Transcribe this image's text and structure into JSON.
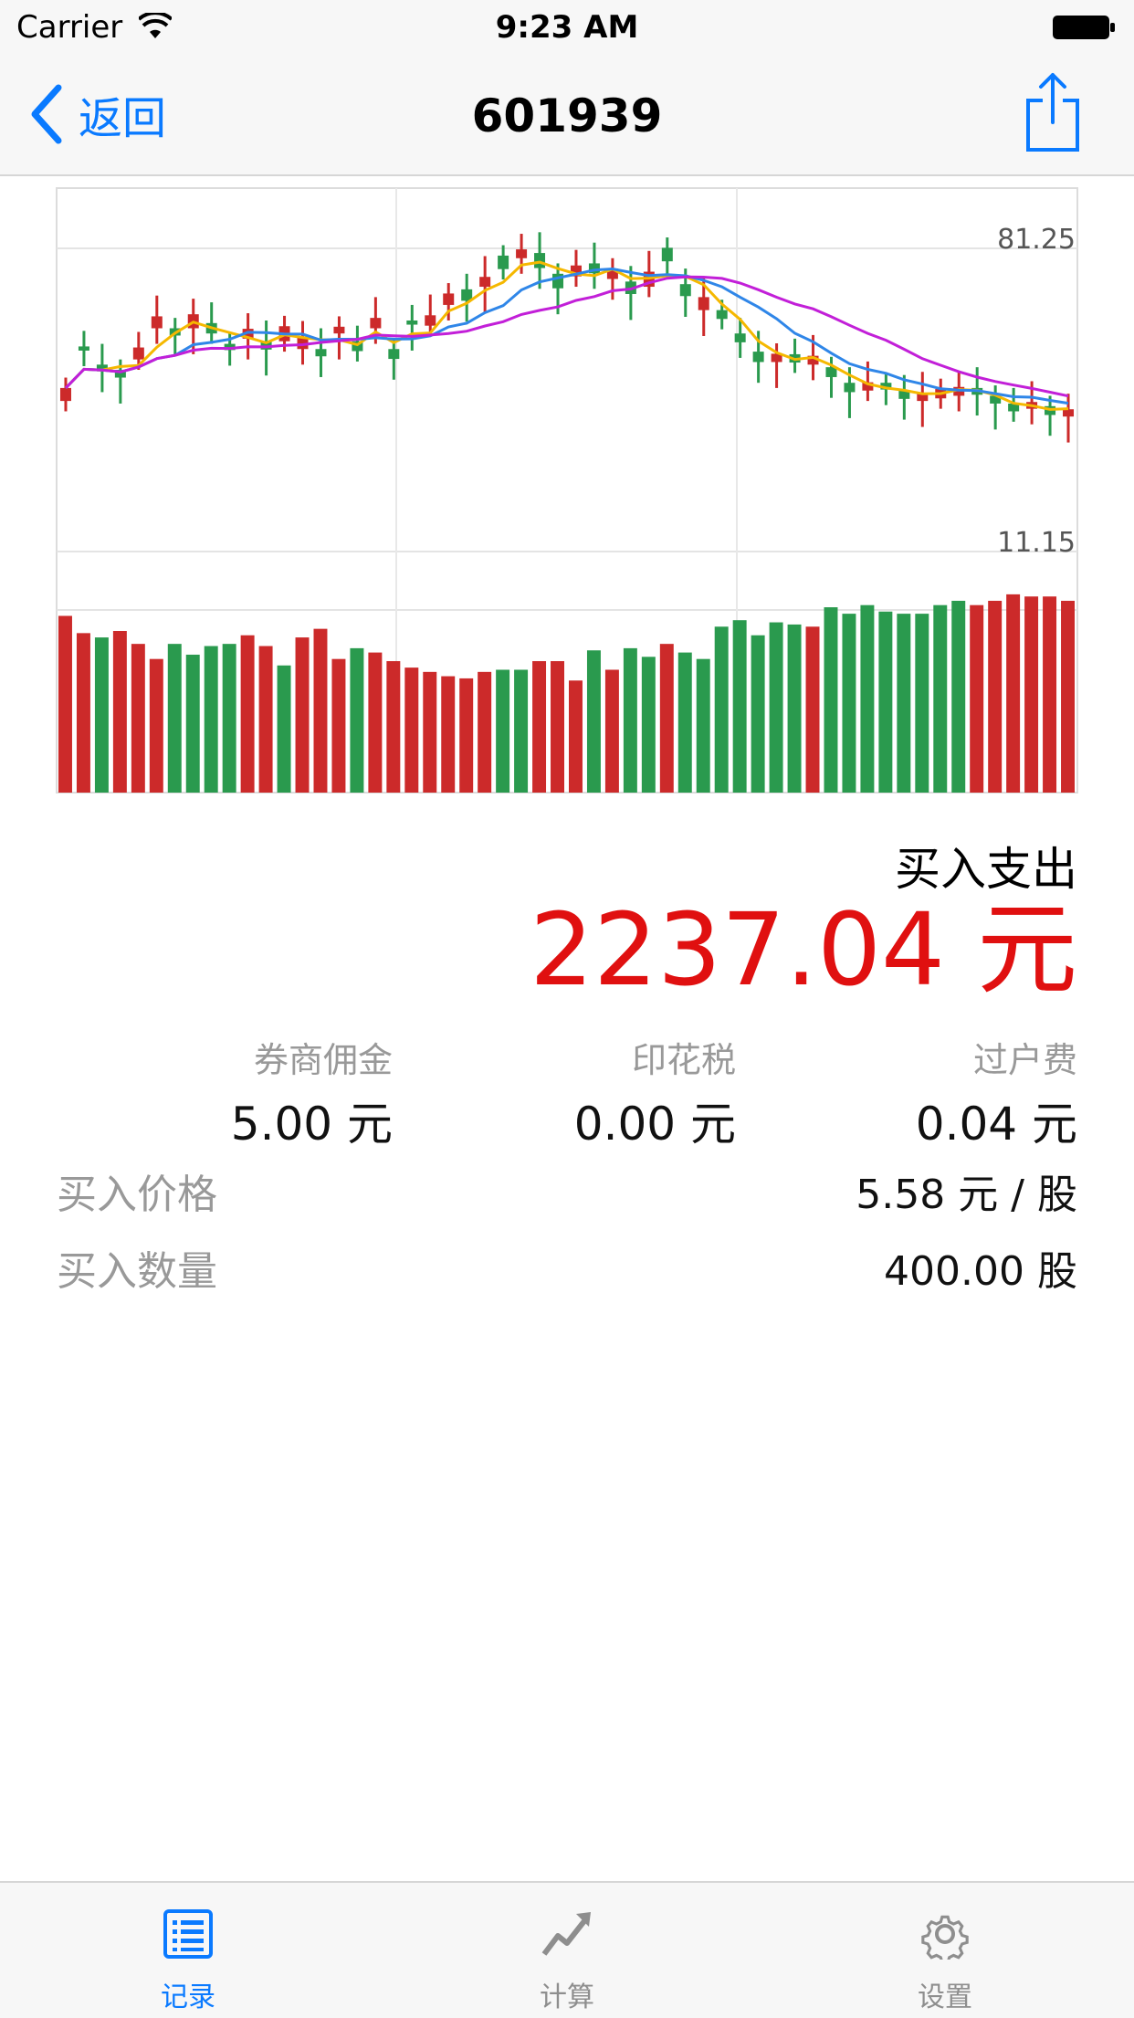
{
  "status": {
    "carrier": "Carrier",
    "time": "9:23 AM"
  },
  "nav": {
    "back_label": "返回",
    "title": "601939"
  },
  "chart_data": {
    "type": "candlestick",
    "price_axis_labels": [
      "81.25",
      "11.15"
    ],
    "ma_colors": [
      "#f5b800",
      "#2f86e8",
      "#c21fd8"
    ],
    "up_color": "#cc2a2a",
    "down_color": "#2a9a4e",
    "volume_colors": [
      "r",
      "r",
      "g",
      "r",
      "r",
      "r",
      "g",
      "g",
      "g",
      "g",
      "r",
      "r",
      "g",
      "r",
      "r",
      "r",
      "g",
      "r",
      "r",
      "r",
      "r",
      "r",
      "r",
      "r",
      "g",
      "g",
      "r",
      "r",
      "r",
      "g",
      "r",
      "g",
      "g",
      "r",
      "g",
      "g",
      "g",
      "g",
      "g",
      "g",
      "g",
      "r",
      "g",
      "g",
      "g",
      "g",
      "g",
      "g",
      "g",
      "g",
      "r",
      "r",
      "r",
      "r",
      "r",
      "r"
    ],
    "volumes": [
      0.82,
      0.74,
      0.72,
      0.75,
      0.69,
      0.62,
      0.69,
      0.64,
      0.68,
      0.69,
      0.73,
      0.68,
      0.59,
      0.72,
      0.76,
      0.62,
      0.67,
      0.65,
      0.61,
      0.58,
      0.56,
      0.54,
      0.53,
      0.56,
      0.57,
      0.57,
      0.61,
      0.61,
      0.52,
      0.66,
      0.57,
      0.67,
      0.63,
      0.69,
      0.65,
      0.62,
      0.77,
      0.8,
      0.73,
      0.79,
      0.78,
      0.77,
      0.86,
      0.83,
      0.87,
      0.84,
      0.83,
      0.83,
      0.87,
      0.89,
      0.87,
      0.89,
      0.92,
      0.91,
      0.91,
      0.89
    ],
    "closes": [
      31.5,
      38.7,
      34.7,
      33.5,
      39.3,
      45.3,
      41.6,
      45.7,
      42.0,
      38.8,
      42.9,
      38.9,
      43.4,
      41.4,
      37.6,
      43.3,
      38.6,
      45.0,
      37.1,
      43.7,
      45.5,
      49.7,
      48.3,
      52.9,
      54.4,
      58.2,
      54.6,
      50.7,
      55.1,
      53.6,
      54.5,
      49.6,
      53.9,
      55.9,
      49.2,
      49.0,
      44.8,
      40.3,
      36.5,
      38.1,
      36.4,
      37.7,
      33.6,
      30.7,
      32.6,
      31.2,
      29.4,
      30.6,
      31.3,
      31.7,
      30.2,
      28.5,
      27.0,
      28.8,
      26.3,
      27.4
    ],
    "opens": [
      29.0,
      39.5,
      36.0,
      35.0,
      37.0,
      43.0,
      43.0,
      43.0,
      44.0,
      40.0,
      41.0,
      40.5,
      40.5,
      39.0,
      39.0,
      42.0,
      40.5,
      43.0,
      39.0,
      44.5,
      43.5,
      47.5,
      50.5,
      51.0,
      57.0,
      56.5,
      57.5,
      53.5,
      53.0,
      55.5,
      52.5,
      52.0,
      51.0,
      58.5,
      51.5,
      46.5,
      46.5,
      42.0,
      38.5,
      36.5,
      38.0,
      36.0,
      35.5,
      32.5,
      31.0,
      32.5,
      31.0,
      29.0,
      29.5,
      30.0,
      31.5,
      30.0,
      28.5,
      27.5,
      28.0,
      26.0
    ]
  },
  "summary": {
    "label": "买入支出",
    "value": "2237.04 元"
  },
  "fees": [
    {
      "label": "券商佣金",
      "value": "5.00 元"
    },
    {
      "label": "印花税",
      "value": "0.00 元"
    },
    {
      "label": "过户费",
      "value": "0.04 元"
    }
  ],
  "details": [
    {
      "label": "买入价格",
      "value": "5.58 元 / 股"
    },
    {
      "label": "买入数量",
      "value": "400.00 股"
    }
  ],
  "tabs": [
    {
      "label": "记录",
      "icon": "list-icon",
      "active": true,
      "color": "#0a7aff"
    },
    {
      "label": "计算",
      "icon": "trend-icon",
      "active": false,
      "color": "#8e8e8e"
    },
    {
      "label": "设置",
      "icon": "gear-icon",
      "active": false,
      "color": "#8e8e8e"
    }
  ]
}
